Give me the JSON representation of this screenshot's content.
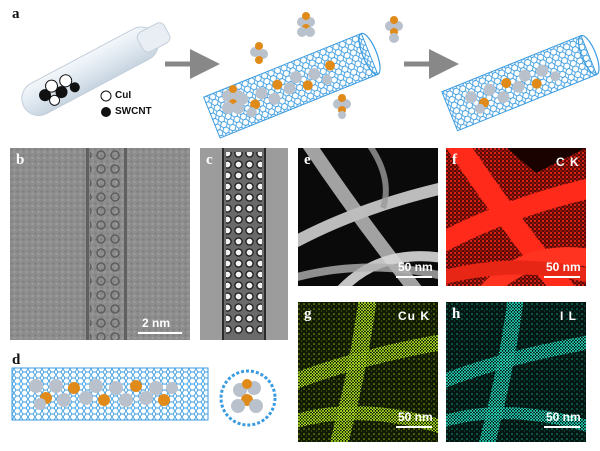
{
  "figure": {
    "panel_labels": {
      "a": "a",
      "b": "b",
      "c": "c",
      "d": "d",
      "e": "e",
      "f": "f",
      "g": "g",
      "h": "h"
    },
    "legend": {
      "cui": "CuI",
      "swcnt": "SWCNT"
    },
    "scale_bars": {
      "b": "2 nm",
      "e": "50 nm",
      "f": "50 nm",
      "g": "50 nm",
      "h": "50 nm"
    },
    "element_maps": {
      "f": "C K",
      "g": "Cu K",
      "h": "I L"
    },
    "colors": {
      "tube": "#3a9be0",
      "copper": "#e08a1a",
      "iodine": "#b9c2cc",
      "map_f": "#ff2a1a",
      "map_g": "#a6e01e",
      "map_h": "#20d6b8",
      "arrow": "#888888"
    }
  }
}
